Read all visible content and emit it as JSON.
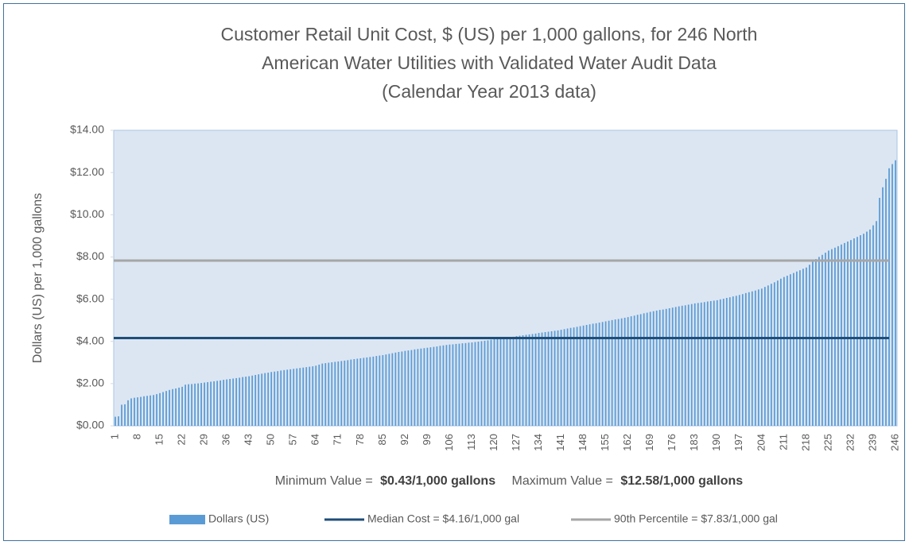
{
  "chart_data": {
    "type": "bar",
    "title": [
      "Customer Retail Unit Cost, $ (US) per 1,000 gallons, for 246 North",
      "American Water Utilities with Validated Water Audit Data",
      "(Calendar Year 2013 data)"
    ],
    "y_label": "Dollars (US) per 1,000 gallons",
    "categories": [
      1,
      null,
      null,
      null,
      null,
      null,
      null,
      8,
      null,
      null,
      null,
      null,
      null,
      null,
      15,
      null,
      null,
      null,
      null,
      null,
      null,
      22,
      null,
      null,
      null,
      null,
      null,
      null,
      29,
      null,
      null,
      null,
      null,
      null,
      null,
      36,
      null,
      null,
      null,
      null,
      null,
      null,
      43,
      null,
      null,
      null,
      null,
      null,
      null,
      50,
      null,
      null,
      null,
      null,
      null,
      null,
      57,
      null,
      null,
      null,
      null,
      null,
      null,
      64,
      null,
      null,
      null,
      null,
      null,
      null,
      71,
      null,
      null,
      null,
      null,
      null,
      null,
      78,
      null,
      null,
      null,
      null,
      null,
      null,
      85,
      null,
      null,
      null,
      null,
      null,
      null,
      92,
      null,
      null,
      null,
      null,
      null,
      null,
      99,
      null,
      null,
      null,
      null,
      null,
      null,
      106,
      null,
      null,
      null,
      null,
      null,
      null,
      113,
      null,
      null,
      null,
      null,
      null,
      null,
      120,
      null,
      null,
      null,
      null,
      null,
      null,
      127,
      null,
      null,
      null,
      null,
      null,
      null,
      134,
      null,
      null,
      null,
      null,
      null,
      null,
      141,
      null,
      null,
      null,
      null,
      null,
      null,
      148,
      null,
      null,
      null,
      null,
      null,
      null,
      155,
      null,
      null,
      null,
      null,
      null,
      null,
      162,
      null,
      null,
      null,
      null,
      null,
      null,
      169,
      null,
      null,
      null,
      null,
      null,
      null,
      176,
      null,
      null,
      null,
      null,
      null,
      null,
      183,
      null,
      null,
      null,
      null,
      null,
      null,
      190,
      null,
      null,
      null,
      null,
      null,
      null,
      197,
      null,
      null,
      null,
      null,
      null,
      null,
      204,
      null,
      null,
      null,
      null,
      null,
      null,
      211,
      null,
      null,
      null,
      null,
      null,
      null,
      218,
      null,
      null,
      null,
      null,
      null,
      null,
      225,
      null,
      null,
      null,
      null,
      null,
      null,
      232,
      null,
      null,
      null,
      null,
      null,
      null,
      239,
      null,
      null,
      null,
      null,
      null,
      null,
      246
    ],
    "series": [
      {
        "name": "Dollars (US)",
        "color": "#5b9bd5",
        "values": [
          0.43,
          0.45,
          1.0,
          1.02,
          1.21,
          1.3,
          1.33,
          1.35,
          1.37,
          1.4,
          1.42,
          1.44,
          1.46,
          1.5,
          1.55,
          1.6,
          1.65,
          1.7,
          1.74,
          1.77,
          1.81,
          1.85,
          1.95,
          1.97,
          1.98,
          2.0,
          2.01,
          2.03,
          2.05,
          2.07,
          2.09,
          2.11,
          2.13,
          2.15,
          2.18,
          2.2,
          2.22,
          2.24,
          2.26,
          2.28,
          2.31,
          2.33,
          2.35,
          2.38,
          2.41,
          2.44,
          2.47,
          2.5,
          2.52,
          2.55,
          2.57,
          2.59,
          2.62,
          2.64,
          2.66,
          2.68,
          2.7,
          2.72,
          2.74,
          2.76,
          2.78,
          2.8,
          2.82,
          2.85,
          2.9,
          2.95,
          2.97,
          2.99,
          3.01,
          3.03,
          3.05,
          3.07,
          3.09,
          3.11,
          3.14,
          3.16,
          3.18,
          3.2,
          3.22,
          3.24,
          3.26,
          3.28,
          3.31,
          3.33,
          3.35,
          3.38,
          3.41,
          3.44,
          3.47,
          3.5,
          3.52,
          3.55,
          3.57,
          3.59,
          3.62,
          3.64,
          3.66,
          3.68,
          3.7,
          3.72,
          3.74,
          3.76,
          3.79,
          3.81,
          3.83,
          3.85,
          3.86,
          3.88,
          3.89,
          3.91,
          3.92,
          3.94,
          3.95,
          3.97,
          3.99,
          4.01,
          4.03,
          4.05,
          4.08,
          4.1,
          4.12,
          4.14,
          4.16,
          4.18,
          4.2,
          4.22,
          4.25,
          4.27,
          4.29,
          4.31,
          4.33,
          4.35,
          4.37,
          4.4,
          4.42,
          4.44,
          4.46,
          4.48,
          4.5,
          4.52,
          4.55,
          4.58,
          4.61,
          4.64,
          4.66,
          4.69,
          4.72,
          4.75,
          4.78,
          4.81,
          4.84,
          4.86,
          4.89,
          4.92,
          4.95,
          4.98,
          5.01,
          5.04,
          5.06,
          5.09,
          5.12,
          5.15,
          5.19,
          5.22,
          5.26,
          5.29,
          5.33,
          5.36,
          5.4,
          5.43,
          5.46,
          5.49,
          5.51,
          5.54,
          5.57,
          5.6,
          5.63,
          5.66,
          5.69,
          5.71,
          5.74,
          5.77,
          5.8,
          5.82,
          5.84,
          5.86,
          5.89,
          5.91,
          5.93,
          5.95,
          5.99,
          6.02,
          6.06,
          6.09,
          6.13,
          6.16,
          6.2,
          6.24,
          6.29,
          6.33,
          6.37,
          6.41,
          6.46,
          6.5,
          6.58,
          6.65,
          6.73,
          6.8,
          6.88,
          6.97,
          7.05,
          7.11,
          7.18,
          7.24,
          7.31,
          7.37,
          7.44,
          7.5,
          7.63,
          7.77,
          7.9,
          8.0,
          8.1,
          8.2,
          8.3,
          8.37,
          8.44,
          8.51,
          8.59,
          8.66,
          8.73,
          8.8,
          8.88,
          8.95,
          9.03,
          9.1,
          9.2,
          9.3,
          9.5,
          9.7,
          10.8,
          11.3,
          11.7,
          12.2,
          12.4,
          12.58
        ]
      }
    ],
    "reference_lines": [
      {
        "name": "Median Cost = $4.16/1,000 gal",
        "value": 4.16,
        "color": "#1f4e79"
      },
      {
        "name": "90th Percentile = $7.83/1,000 gal",
        "value": 7.83,
        "color": "#a6a6a6"
      }
    ],
    "annotation": {
      "min_text": "Minimum Value =",
      "min_value": "$0.43/1,000 gallons",
      "max_text": "Maximum Value =",
      "max_value": "$12.58/1,000 gallons"
    },
    "ylim": [
      0,
      14
    ],
    "yticks": [
      {
        "value": 0,
        "label": "$0.00"
      },
      {
        "value": 2,
        "label": "$2.00"
      },
      {
        "value": 4,
        "label": "$4.00"
      },
      {
        "value": 6,
        "label": "$6.00"
      },
      {
        "value": 8,
        "label": "$8.00"
      },
      {
        "value": 10,
        "label": "$10.00"
      },
      {
        "value": 12,
        "label": "$12.00"
      },
      {
        "value": 14,
        "label": "$14.00"
      }
    ],
    "grid": false,
    "legend": "bottom"
  }
}
